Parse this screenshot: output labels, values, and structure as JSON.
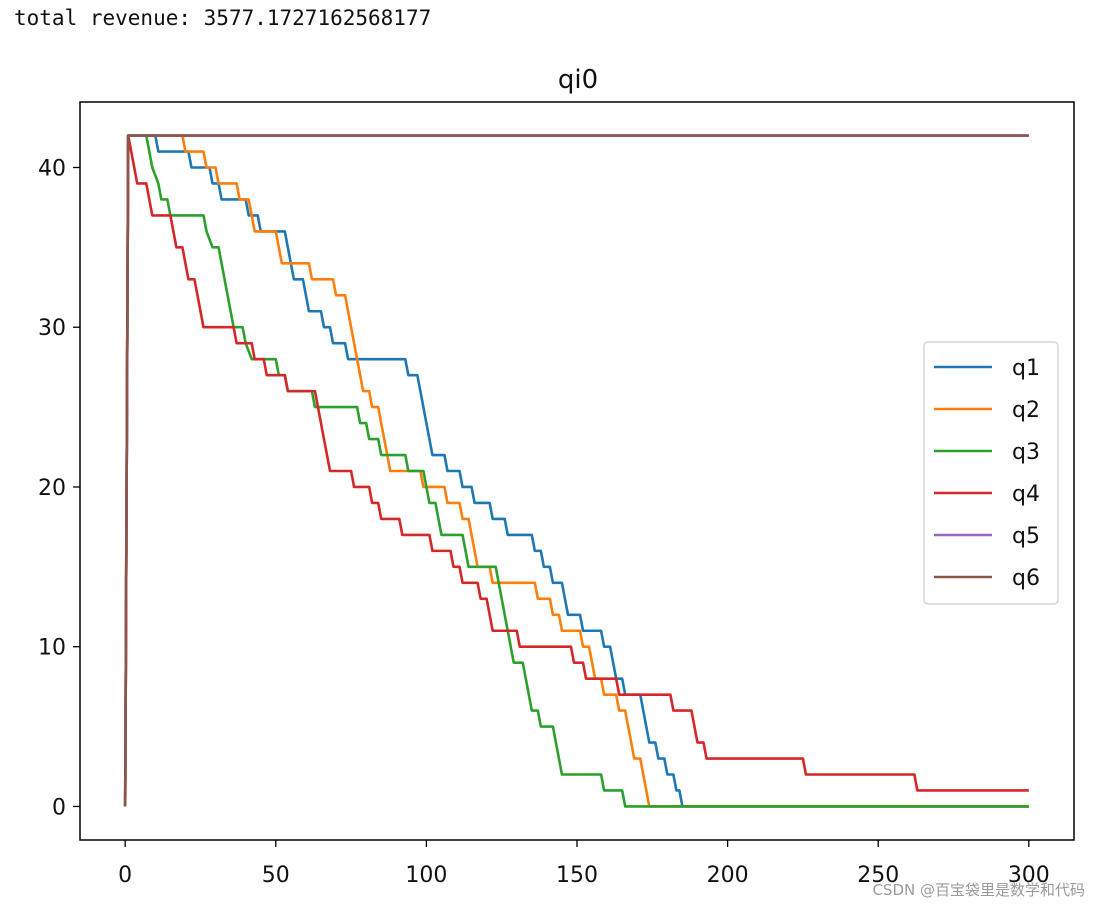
{
  "output": {
    "prefix": "total revenue: ",
    "value": "3577.1727162568177"
  },
  "watermark": "CSDN @百宝袋里是数学和代码",
  "chart_data": {
    "type": "line",
    "title": "qi0",
    "xlabel": "",
    "ylabel": "",
    "xlim": [
      -15,
      315
    ],
    "ylim": [
      -2.1,
      44.1
    ],
    "xticks": [
      0,
      50,
      100,
      150,
      200,
      250,
      300
    ],
    "yticks": [
      0,
      10,
      20,
      30,
      40
    ],
    "grid": false,
    "legend_position": "center-right",
    "series": [
      {
        "name": "q1",
        "color": "#1f77b4",
        "points": [
          [
            0,
            0
          ],
          [
            1,
            42
          ],
          [
            10,
            42
          ],
          [
            11,
            41
          ],
          [
            21,
            41
          ],
          [
            22,
            40
          ],
          [
            28,
            40
          ],
          [
            29,
            39
          ],
          [
            31,
            39
          ],
          [
            32,
            38
          ],
          [
            40,
            38
          ],
          [
            41,
            37
          ],
          [
            44,
            37
          ],
          [
            45,
            36
          ],
          [
            53,
            36
          ],
          [
            54,
            35
          ],
          [
            55,
            34
          ],
          [
            56,
            33
          ],
          [
            59,
            33
          ],
          [
            60,
            32
          ],
          [
            61,
            31
          ],
          [
            65,
            31
          ],
          [
            66,
            30
          ],
          [
            68,
            30
          ],
          [
            69,
            29
          ],
          [
            73,
            29
          ],
          [
            74,
            28
          ],
          [
            93,
            28
          ],
          [
            94,
            27
          ],
          [
            97,
            27
          ],
          [
            98,
            26
          ],
          [
            99,
            25
          ],
          [
            100,
            24
          ],
          [
            101,
            23
          ],
          [
            102,
            22
          ],
          [
            106,
            22
          ],
          [
            107,
            21
          ],
          [
            111,
            21
          ],
          [
            112,
            20
          ],
          [
            115,
            20
          ],
          [
            116,
            19
          ],
          [
            121,
            19
          ],
          [
            122,
            18
          ],
          [
            126,
            18
          ],
          [
            127,
            17
          ],
          [
            135,
            17
          ],
          [
            136,
            16
          ],
          [
            138,
            16
          ],
          [
            139,
            15
          ],
          [
            141,
            15
          ],
          [
            142,
            14
          ],
          [
            145,
            14
          ],
          [
            146,
            13
          ],
          [
            147,
            12
          ],
          [
            151,
            12
          ],
          [
            152,
            11
          ],
          [
            158,
            11
          ],
          [
            159,
            10
          ],
          [
            161,
            10
          ],
          [
            162,
            9
          ],
          [
            163,
            8
          ],
          [
            165,
            8
          ],
          [
            166,
            7
          ],
          [
            171,
            7
          ],
          [
            172,
            6
          ],
          [
            173,
            5
          ],
          [
            174,
            4
          ],
          [
            176,
            4
          ],
          [
            177,
            3
          ],
          [
            179,
            3
          ],
          [
            180,
            2
          ],
          [
            182,
            2
          ],
          [
            183,
            1
          ],
          [
            184,
            1
          ],
          [
            185,
            0
          ],
          [
            300,
            0
          ]
        ]
      },
      {
        "name": "q2",
        "color": "#ff7f0e",
        "points": [
          [
            0,
            0
          ],
          [
            1,
            42
          ],
          [
            19,
            42
          ],
          [
            20,
            41
          ],
          [
            26,
            41
          ],
          [
            27,
            40
          ],
          [
            30,
            40
          ],
          [
            31,
            39
          ],
          [
            37,
            39
          ],
          [
            38,
            38
          ],
          [
            41,
            38
          ],
          [
            42,
            37
          ],
          [
            43,
            36
          ],
          [
            50,
            36
          ],
          [
            51,
            35
          ],
          [
            52,
            34
          ],
          [
            61,
            34
          ],
          [
            62,
            33
          ],
          [
            69,
            33
          ],
          [
            70,
            32
          ],
          [
            73,
            32
          ],
          [
            74,
            31
          ],
          [
            75,
            30
          ],
          [
            76,
            29
          ],
          [
            77,
            28
          ],
          [
            78,
            27
          ],
          [
            79,
            26
          ],
          [
            81,
            26
          ],
          [
            82,
            25
          ],
          [
            84,
            25
          ],
          [
            85,
            24
          ],
          [
            86,
            23
          ],
          [
            87,
            22
          ],
          [
            88,
            21
          ],
          [
            98,
            21
          ],
          [
            99,
            20
          ],
          [
            106,
            20
          ],
          [
            107,
            19
          ],
          [
            111,
            19
          ],
          [
            112,
            18
          ],
          [
            114,
            18
          ],
          [
            115,
            17
          ],
          [
            116,
            16
          ],
          [
            117,
            15
          ],
          [
            121,
            15
          ],
          [
            122,
            14
          ],
          [
            136,
            14
          ],
          [
            137,
            13
          ],
          [
            141,
            13
          ],
          [
            142,
            12
          ],
          [
            144,
            12
          ],
          [
            145,
            11
          ],
          [
            151,
            11
          ],
          [
            152,
            10
          ],
          [
            154,
            10
          ],
          [
            155,
            9
          ],
          [
            156,
            8
          ],
          [
            158,
            8
          ],
          [
            159,
            7
          ],
          [
            163,
            7
          ],
          [
            164,
            6
          ],
          [
            166,
            6
          ],
          [
            167,
            5
          ],
          [
            168,
            4
          ],
          [
            169,
            3
          ],
          [
            171,
            3
          ],
          [
            172,
            2
          ],
          [
            173,
            1
          ],
          [
            174,
            0
          ],
          [
            300,
            0
          ]
        ]
      },
      {
        "name": "q3",
        "color": "#2ca02c",
        "points": [
          [
            0,
            0
          ],
          [
            1,
            42
          ],
          [
            7,
            42
          ],
          [
            8,
            41
          ],
          [
            9,
            40
          ],
          [
            11,
            39
          ],
          [
            12,
            38
          ],
          [
            14,
            38
          ],
          [
            15,
            37
          ],
          [
            26,
            37
          ],
          [
            27,
            36
          ],
          [
            29,
            35
          ],
          [
            31,
            35
          ],
          [
            32,
            34
          ],
          [
            33,
            33
          ],
          [
            34,
            32
          ],
          [
            35,
            31
          ],
          [
            36,
            30
          ],
          [
            39,
            30
          ],
          [
            40,
            29
          ],
          [
            42,
            28
          ],
          [
            50,
            28
          ],
          [
            51,
            27
          ],
          [
            53,
            27
          ],
          [
            54,
            26
          ],
          [
            62,
            26
          ],
          [
            63,
            25
          ],
          [
            77,
            25
          ],
          [
            78,
            24
          ],
          [
            80,
            24
          ],
          [
            81,
            23
          ],
          [
            84,
            23
          ],
          [
            85,
            22
          ],
          [
            93,
            22
          ],
          [
            94,
            21
          ],
          [
            99,
            21
          ],
          [
            100,
            20
          ],
          [
            101,
            19
          ],
          [
            103,
            19
          ],
          [
            104,
            18
          ],
          [
            105,
            17
          ],
          [
            112,
            17
          ],
          [
            113,
            16
          ],
          [
            114,
            15
          ],
          [
            123,
            15
          ],
          [
            124,
            14
          ],
          [
            125,
            13
          ],
          [
            126,
            12
          ],
          [
            127,
            11
          ],
          [
            128,
            10
          ],
          [
            129,
            9
          ],
          [
            132,
            9
          ],
          [
            133,
            8
          ],
          [
            134,
            7
          ],
          [
            135,
            6
          ],
          [
            137,
            6
          ],
          [
            138,
            5
          ],
          [
            142,
            5
          ],
          [
            143,
            4
          ],
          [
            144,
            3
          ],
          [
            145,
            2
          ],
          [
            158,
            2
          ],
          [
            159,
            1
          ],
          [
            165,
            1
          ],
          [
            166,
            0
          ],
          [
            300,
            0
          ]
        ]
      },
      {
        "name": "q4",
        "color": "#d62728",
        "points": [
          [
            0,
            0
          ],
          [
            1,
            42
          ],
          [
            2,
            41
          ],
          [
            3,
            40
          ],
          [
            4,
            39
          ],
          [
            7,
            39
          ],
          [
            8,
            38
          ],
          [
            9,
            37
          ],
          [
            15,
            37
          ],
          [
            16,
            36
          ],
          [
            17,
            35
          ],
          [
            19,
            35
          ],
          [
            20,
            34
          ],
          [
            21,
            33
          ],
          [
            23,
            33
          ],
          [
            24,
            32
          ],
          [
            25,
            31
          ],
          [
            26,
            30
          ],
          [
            36,
            30
          ],
          [
            37,
            29
          ],
          [
            42,
            29
          ],
          [
            43,
            28
          ],
          [
            46,
            28
          ],
          [
            47,
            27
          ],
          [
            53,
            27
          ],
          [
            54,
            26
          ],
          [
            63,
            26
          ],
          [
            64,
            25
          ],
          [
            65,
            24
          ],
          [
            66,
            23
          ],
          [
            67,
            22
          ],
          [
            68,
            21
          ],
          [
            75,
            21
          ],
          [
            76,
            20
          ],
          [
            81,
            20
          ],
          [
            82,
            19
          ],
          [
            84,
            19
          ],
          [
            85,
            18
          ],
          [
            91,
            18
          ],
          [
            92,
            17
          ],
          [
            101,
            17
          ],
          [
            102,
            16
          ],
          [
            108,
            16
          ],
          [
            109,
            15
          ],
          [
            111,
            15
          ],
          [
            112,
            14
          ],
          [
            117,
            14
          ],
          [
            118,
            13
          ],
          [
            120,
            13
          ],
          [
            121,
            12
          ],
          [
            122,
            11
          ],
          [
            130,
            11
          ],
          [
            131,
            10
          ],
          [
            148,
            10
          ],
          [
            149,
            9
          ],
          [
            152,
            9
          ],
          [
            153,
            8
          ],
          [
            163,
            8
          ],
          [
            164,
            7
          ],
          [
            181,
            7
          ],
          [
            182,
            6
          ],
          [
            188,
            6
          ],
          [
            189,
            5
          ],
          [
            190,
            4
          ],
          [
            192,
            4
          ],
          [
            193,
            3
          ],
          [
            225,
            3
          ],
          [
            226,
            2
          ],
          [
            262,
            2
          ],
          [
            263,
            1
          ],
          [
            300,
            1
          ]
        ]
      },
      {
        "name": "q5",
        "color": "#9467bd",
        "points": [
          [
            0,
            0
          ],
          [
            1,
            42
          ],
          [
            300,
            42
          ]
        ]
      },
      {
        "name": "q6",
        "color": "#8c564b",
        "points": [
          [
            0,
            0
          ],
          [
            1,
            42
          ],
          [
            300,
            42
          ]
        ]
      }
    ]
  }
}
